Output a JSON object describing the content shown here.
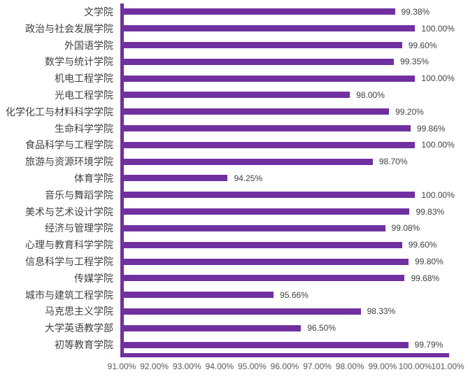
{
  "chart_data": {
    "type": "bar",
    "orientation": "horizontal",
    "title": "",
    "xlabel": "",
    "ylabel": "",
    "categories": [
      "文学院",
      "政治与社会发展学院",
      "外国语学院",
      "数学与统计学院",
      "机电工程学院",
      "光电工程学院",
      "化学化工与材料科学学院",
      "生命科学学院",
      "食品科学与工程学院",
      "旅游与资源环境学院",
      "体育学院",
      "音乐与舞蹈学院",
      "美术与艺术设计学院",
      "经济与管理学院",
      "心理与教育科学学院",
      "信息科学与工程学院",
      "传媒学院",
      "城市与建筑工程学院",
      "马克思主义学院",
      "大学英语教学部",
      "初等教育学院"
    ],
    "values": [
      99.38,
      100.0,
      99.6,
      99.35,
      100.0,
      98.0,
      99.2,
      99.86,
      100.0,
      98.7,
      94.25,
      100.0,
      99.83,
      99.08,
      99.6,
      99.8,
      99.68,
      95.66,
      98.33,
      96.5,
      99.79
    ],
    "value_labels": [
      "99.38%",
      "100.00%",
      "99.60%",
      "99.35%",
      "100.00%",
      "98.00%",
      "99.20%",
      "99.86%",
      "100.00%",
      "98.70%",
      "94.25%",
      "100.00%",
      "99.83%",
      "99.08%",
      "99.60%",
      "99.80%",
      "99.68%",
      "95.66%",
      "98.33%",
      "96.50%",
      "99.79%"
    ],
    "x_ticks": [
      "91.00%",
      "92.00%",
      "93.00%",
      "94.00%",
      "95.00%",
      "96.00%",
      "97.00%",
      "98.00%",
      "99.00%",
      "100.00%",
      "101.00%"
    ],
    "xlim": [
      91,
      101
    ],
    "grid": false,
    "legend": false,
    "bar_color": "#7030A0",
    "axis_color": "#7030A0",
    "label_color": "#404040",
    "tick_color": "#595959"
  }
}
